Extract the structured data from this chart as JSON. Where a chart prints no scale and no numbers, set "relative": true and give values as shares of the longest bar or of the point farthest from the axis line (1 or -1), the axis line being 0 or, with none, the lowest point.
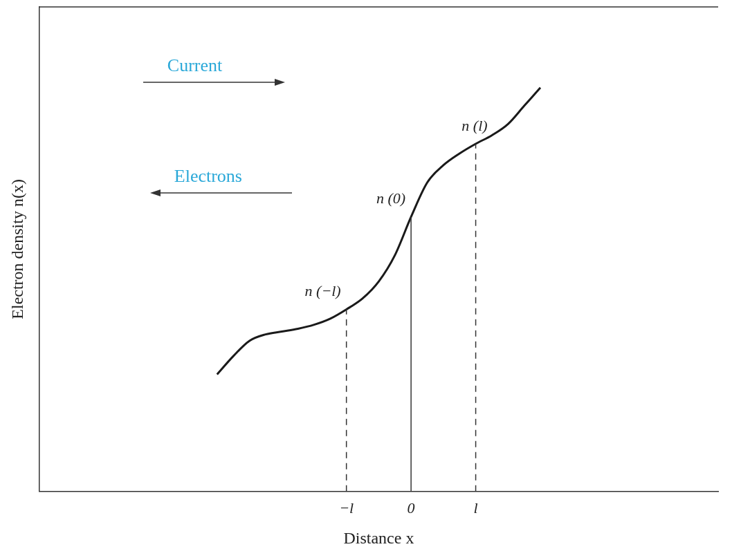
{
  "chart_data": {
    "type": "line",
    "relative": true,
    "xlabel": "Distance x",
    "ylabel": "Electron density n(x)",
    "tick_labels": "x",
    "categories": [
      null,
      null,
      null,
      null,
      null,
      null,
      null,
      null,
      null,
      null,
      null,
      null,
      null,
      null,
      null,
      null,
      null,
      null,
      null,
      "−l",
      null,
      null,
      null,
      "0",
      null,
      null,
      null,
      "l",
      null,
      null,
      null,
      null,
      null,
      null,
      null,
      null,
      null,
      null,
      null,
      null,
      null,
      null,
      null
    ],
    "series": [
      {
        "color": "#1a1a1a",
        "values": [
          null,
          null,
          null,
          null,
          null,
          null,
          null,
          null,
          null,
          null,
          null,
          0.29,
          0.335,
          0.373,
          0.389,
          0.396,
          0.403,
          0.413,
          0.428,
          0.451,
          0.478,
          0.52,
          0.585,
          0.68,
          0.765,
          0.808,
          0.837,
          0.861,
          0.882,
          0.91,
          0.955,
          1,
          null,
          null,
          null,
          null,
          null,
          null,
          null,
          null,
          null,
          null,
          null
        ]
      }
    ],
    "marker": "none",
    "line_style": "solid",
    "ref_lines": [
      {
        "axis": "x",
        "value": "−l",
        "line_style": "dashed",
        "color": "#333333"
      },
      {
        "axis": "x",
        "value": "0",
        "line_style": "solid",
        "color": "#333333"
      },
      {
        "axis": "x",
        "value": "l",
        "line_style": "dashed",
        "color": "#333333"
      }
    ],
    "annotations": [
      "Current",
      "Electrons",
      {
        "text": "n (−l)",
        "x": "−l",
        "y": 0.451
      },
      {
        "text": "n (0)",
        "x": "0",
        "y": 0.68
      },
      {
        "text": "n (l)",
        "x": "l",
        "y": 0.861
      }
    ]
  }
}
